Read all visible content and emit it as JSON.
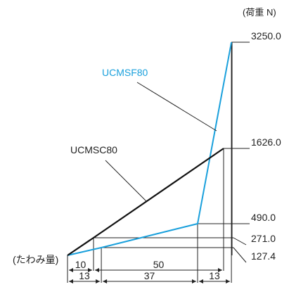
{
  "chart_data": {
    "type": "line",
    "unit_label": "(荷重 N)",
    "x_axis_label": "(たわみ量)",
    "ylabels": [
      "3250.0",
      "1626.0",
      "490.0",
      "271.0",
      "127.4"
    ],
    "series": [
      {
        "name": "UCMSF80",
        "color": "#1aa0dc",
        "points": [
          [
            0,
            0
          ],
          [
            13,
            127.4
          ],
          [
            50,
            490.0
          ],
          [
            63,
            3250.0
          ]
        ]
      },
      {
        "name": "UCMSC80",
        "color": "#111111",
        "points": [
          [
            0,
            0
          ],
          [
            10,
            271.0
          ],
          [
            60,
            1626.0
          ]
        ]
      }
    ],
    "dims_top": [
      {
        "from": 0,
        "to": 10,
        "label": "10"
      },
      {
        "from": 10,
        "to": 60,
        "label": "50"
      }
    ],
    "dims_bottom": [
      {
        "from": 0,
        "to": 13,
        "label": "13"
      },
      {
        "from": 13,
        "to": 50,
        "label": "37"
      },
      {
        "from": 50,
        "to": 63,
        "label": "13"
      }
    ]
  }
}
